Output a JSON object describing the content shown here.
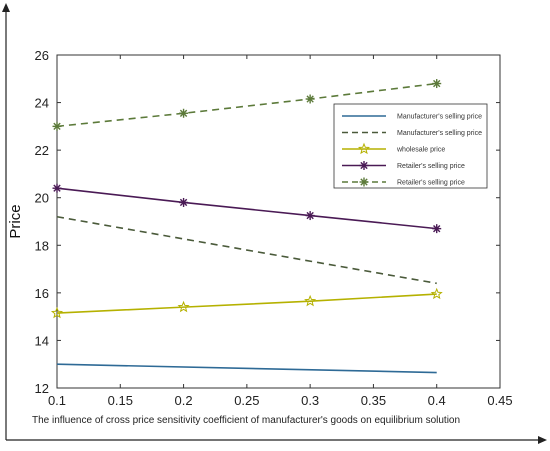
{
  "chart_data": {
    "type": "line",
    "caption": "The influence of cross price sensitivity coefficient of manufacturer's goods on equilibrium solution",
    "ylabel": "Price",
    "xlim": [
      0.1,
      0.45
    ],
    "ylim": [
      12,
      26
    ],
    "x_ticks": [
      "0.1",
      "0.15",
      "0.2",
      "0.25",
      "0.3",
      "0.35",
      "0.4",
      "0.45"
    ],
    "y_ticks": [
      "12",
      "14",
      "16",
      "18",
      "20",
      "22",
      "24",
      "26"
    ],
    "grid": false,
    "legend_position": "upper-right",
    "series": [
      {
        "name": "Manufacturer's selling price",
        "color": "#2e6a96",
        "dash": "solid",
        "marker": "none",
        "x": [
          0.1,
          0.4
        ],
        "y": [
          13.0,
          12.65
        ]
      },
      {
        "name": "Manufacturer's selling price",
        "color": "#4a5a3a",
        "dash": "dashed",
        "marker": "none",
        "x": [
          0.1,
          0.4
        ],
        "y": [
          19.2,
          16.4
        ]
      },
      {
        "name": "wholesale price",
        "color": "#b5b100",
        "dash": "solid",
        "marker": "star",
        "x": [
          0.1,
          0.2,
          0.3,
          0.4
        ],
        "y": [
          15.15,
          15.4,
          15.65,
          15.95
        ]
      },
      {
        "name": "Retailer's selling price",
        "color": "#4a1a55",
        "dash": "solid",
        "marker": "asterisk",
        "x": [
          0.1,
          0.2,
          0.3,
          0.4
        ],
        "y": [
          20.4,
          19.8,
          19.25,
          18.7
        ]
      },
      {
        "name": "Retailer's selling price",
        "color": "#5c7a3a",
        "dash": "dashed",
        "marker": "asterisk",
        "x": [
          0.1,
          0.2,
          0.3,
          0.4
        ],
        "y": [
          23.0,
          23.55,
          24.15,
          24.8
        ]
      }
    ]
  }
}
